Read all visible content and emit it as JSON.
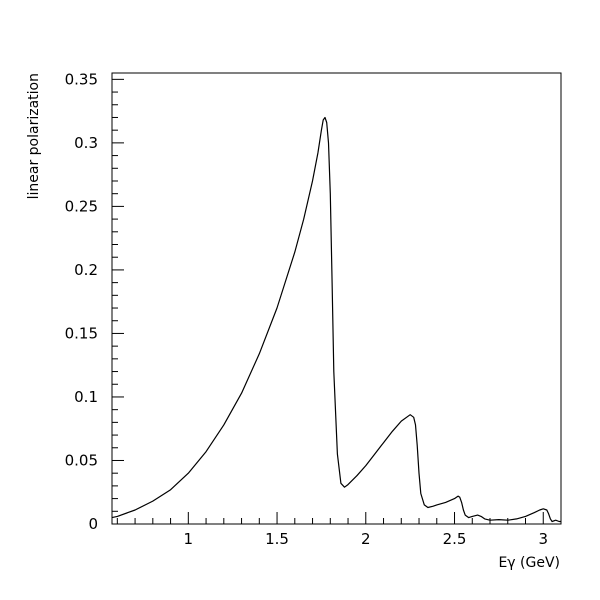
{
  "chart_data": {
    "type": "line",
    "xlabel": "Eγ (GeV)",
    "ylabel": "linear polarization",
    "xlim": [
      0.57,
      3.1
    ],
    "ylim": [
      0,
      0.355
    ],
    "grid": false,
    "x_ticks": [
      "1",
      "1.5",
      "2",
      "2.5",
      "3"
    ],
    "y_ticks": [
      "0",
      "0.05",
      "0.1",
      "0.15",
      "0.2",
      "0.25",
      "0.3",
      "0.35"
    ],
    "series": [
      {
        "x": [
          0.57,
          0.6,
          0.7,
          0.8,
          0.9,
          1.0,
          1.1,
          1.2,
          1.3,
          1.4,
          1.5,
          1.6,
          1.65,
          1.7,
          1.73,
          1.75,
          1.76,
          1.77,
          1.78,
          1.79,
          1.8,
          1.81,
          1.82,
          1.84,
          1.86,
          1.88,
          1.9,
          1.95,
          2.0,
          2.05,
          2.1,
          2.15,
          2.2,
          2.25,
          2.27,
          2.28,
          2.29,
          2.3,
          2.31,
          2.33,
          2.35,
          2.38,
          2.4,
          2.45,
          2.5,
          2.52,
          2.53,
          2.54,
          2.55,
          2.56,
          2.58,
          2.6,
          2.63,
          2.65,
          2.67,
          2.7,
          2.75,
          2.8,
          2.85,
          2.9,
          2.95,
          2.98,
          3.0,
          3.02,
          3.03,
          3.04,
          3.05,
          3.07,
          3.09,
          3.1
        ],
        "y": [
          0.005,
          0.006,
          0.011,
          0.018,
          0.027,
          0.04,
          0.057,
          0.078,
          0.103,
          0.134,
          0.17,
          0.214,
          0.24,
          0.27,
          0.292,
          0.31,
          0.318,
          0.32,
          0.316,
          0.3,
          0.26,
          0.19,
          0.12,
          0.055,
          0.032,
          0.029,
          0.031,
          0.038,
          0.046,
          0.055,
          0.064,
          0.073,
          0.081,
          0.086,
          0.084,
          0.078,
          0.062,
          0.04,
          0.024,
          0.015,
          0.013,
          0.014,
          0.015,
          0.017,
          0.02,
          0.022,
          0.021,
          0.017,
          0.011,
          0.007,
          0.005,
          0.006,
          0.007,
          0.006,
          0.004,
          0.003,
          0.0035,
          0.003,
          0.004,
          0.006,
          0.009,
          0.011,
          0.012,
          0.011,
          0.008,
          0.004,
          0.002,
          0.003,
          0.002,
          0.002
        ]
      }
    ]
  }
}
